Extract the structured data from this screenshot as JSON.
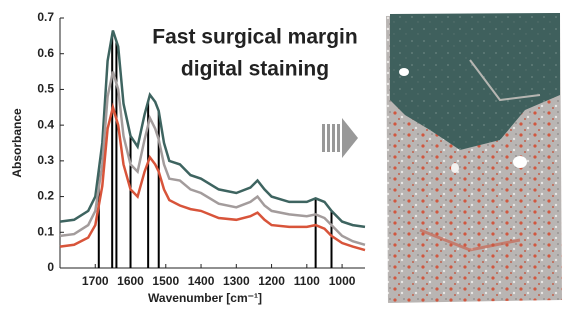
{
  "chart_data": {
    "type": "line",
    "annotation": [
      "Fast surgical margin",
      "digital staining"
    ],
    "xlabel": "Wavenumber [cm⁻¹]",
    "ylabel": "Absorbance",
    "x": [
      1800,
      1760,
      1720,
      1700,
      1680,
      1665,
      1650,
      1635,
      1620,
      1600,
      1580,
      1560,
      1545,
      1530,
      1520,
      1505,
      1490,
      1460,
      1430,
      1400,
      1350,
      1300,
      1260,
      1240,
      1220,
      1200,
      1150,
      1100,
      1075,
      1050,
      1030,
      1000,
      970,
      935
    ],
    "series": [
      {
        "color": "#3e6460",
        "values": [
          0.13,
          0.135,
          0.16,
          0.2,
          0.35,
          0.58,
          0.665,
          0.62,
          0.46,
          0.37,
          0.34,
          0.43,
          0.485,
          0.465,
          0.44,
          0.35,
          0.3,
          0.29,
          0.26,
          0.25,
          0.22,
          0.21,
          0.225,
          0.245,
          0.22,
          0.2,
          0.185,
          0.185,
          0.195,
          0.185,
          0.16,
          0.13,
          0.12,
          0.115
        ]
      },
      {
        "color": "#a39c9c",
        "values": [
          0.09,
          0.095,
          0.12,
          0.16,
          0.29,
          0.48,
          0.55,
          0.5,
          0.37,
          0.29,
          0.27,
          0.36,
          0.42,
          0.39,
          0.36,
          0.29,
          0.25,
          0.245,
          0.22,
          0.21,
          0.18,
          0.17,
          0.185,
          0.2,
          0.175,
          0.16,
          0.15,
          0.145,
          0.15,
          0.14,
          0.12,
          0.09,
          0.075,
          0.065
        ]
      },
      {
        "color": "#d8543a",
        "values": [
          0.06,
          0.065,
          0.085,
          0.12,
          0.23,
          0.39,
          0.45,
          0.4,
          0.29,
          0.22,
          0.2,
          0.27,
          0.31,
          0.29,
          0.27,
          0.22,
          0.19,
          0.175,
          0.165,
          0.16,
          0.14,
          0.135,
          0.145,
          0.155,
          0.135,
          0.12,
          0.115,
          0.115,
          0.12,
          0.11,
          0.09,
          0.07,
          0.06,
          0.05
        ]
      }
    ],
    "markers": [
      1690,
      1652,
      1640,
      1600,
      1550,
      1520,
      1075,
      1030
    ],
    "marker_color": "#000000",
    "xlim": [
      1800,
      935
    ],
    "xticks": [
      1700,
      1600,
      1500,
      1400,
      1300,
      1200,
      1100,
      1000
    ],
    "ylim": [
      0,
      0.7
    ],
    "yticks": [
      0,
      0.1,
      0.2,
      0.3,
      0.4,
      0.5,
      0.6,
      0.7
    ],
    "grid": false
  }
}
